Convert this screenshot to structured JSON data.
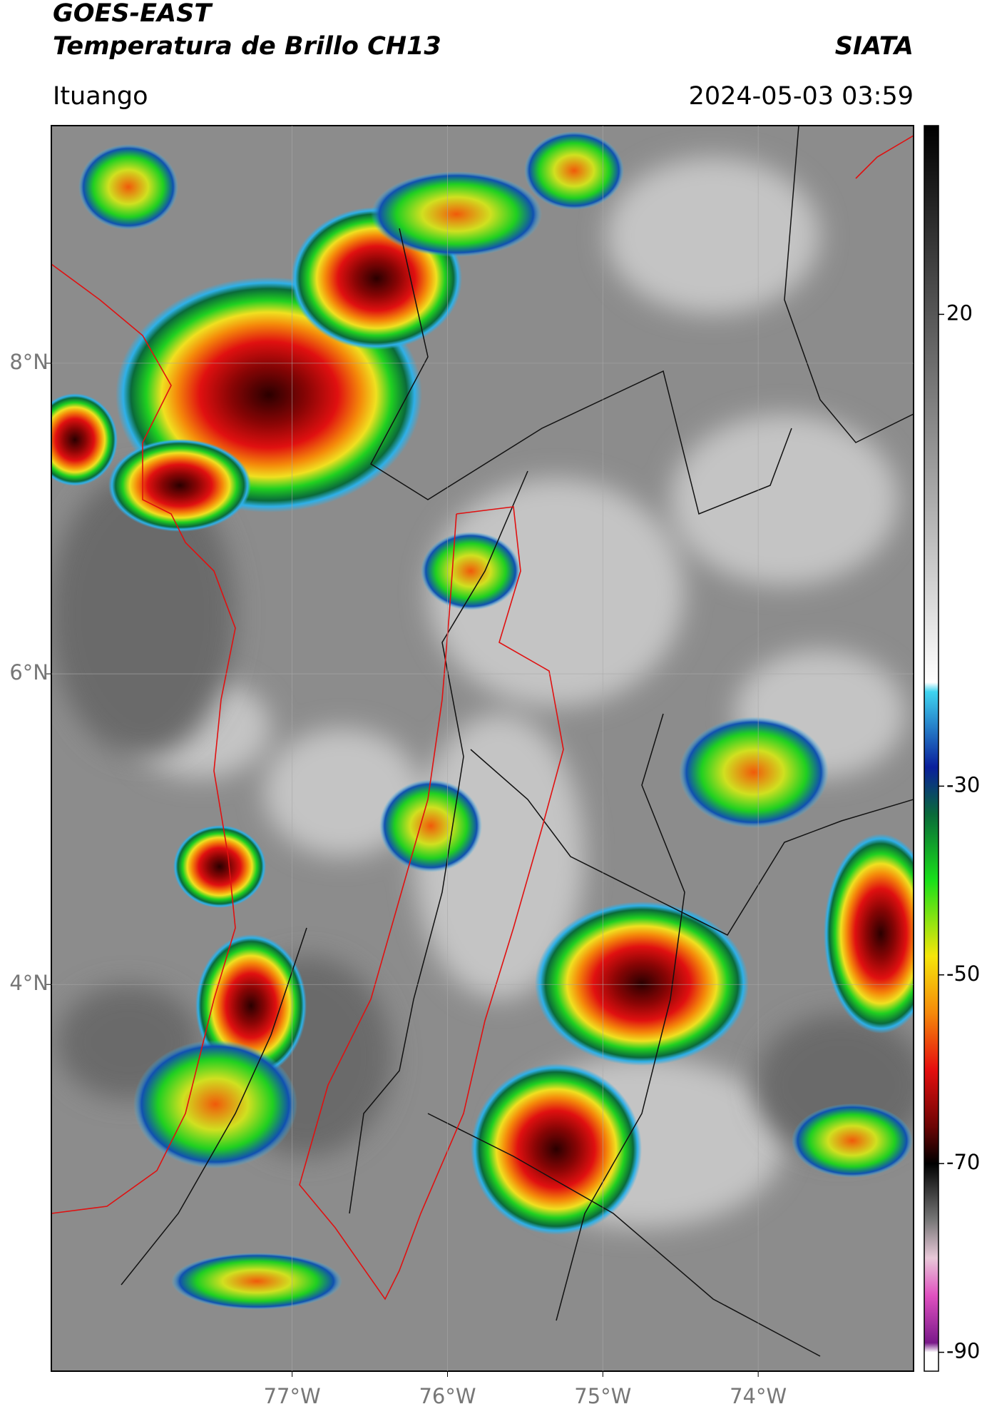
{
  "header": {
    "title": "GOES-EAST",
    "subtitle": "Temperatura de Brillo CH13",
    "brand": "SIATA",
    "location": "Ituango",
    "datetime": "2024-05-03 03:59"
  },
  "map": {
    "lonlim": [
      -78.55,
      -73.0
    ],
    "latlim": [
      1.51,
      9.53
    ],
    "lon_ticks": [
      {
        "value": -77,
        "label": "77°W"
      },
      {
        "value": -76,
        "label": "76°W"
      },
      {
        "value": -75,
        "label": "75°W"
      },
      {
        "value": -74,
        "label": "74°W"
      }
    ],
    "lat_ticks": [
      {
        "value": 8,
        "label": "8°N"
      },
      {
        "value": 6,
        "label": "6°N"
      },
      {
        "value": 4,
        "label": "4°N"
      }
    ],
    "grid": true
  },
  "colorbar": {
    "lim": [
      -92,
      40
    ],
    "ticks": [
      20,
      -30,
      -50,
      -70,
      -90
    ],
    "colormap": [
      {
        "value": 40,
        "color": "#000000"
      },
      {
        "value": -19,
        "color": "#ffffff"
      },
      {
        "value": -20,
        "color": "#3fd4f0"
      },
      {
        "value": -28,
        "color": "#0a1f9c"
      },
      {
        "value": -33,
        "color": "#0a6a3a"
      },
      {
        "value": -40,
        "color": "#19e019"
      },
      {
        "value": -48,
        "color": "#f5e60a"
      },
      {
        "value": -54,
        "color": "#f58a0a"
      },
      {
        "value": -60,
        "color": "#e60f0f"
      },
      {
        "value": -66,
        "color": "#6e0505"
      },
      {
        "value": -70,
        "color": "#000000"
      },
      {
        "value": -76,
        "color": "#777777"
      },
      {
        "value": -80,
        "color": "#e8c8d8"
      },
      {
        "value": -84,
        "color": "#e050c0"
      },
      {
        "value": -89,
        "color": "#7a1a8a"
      },
      {
        "value": -90,
        "color": "#ffffff"
      }
    ]
  }
}
